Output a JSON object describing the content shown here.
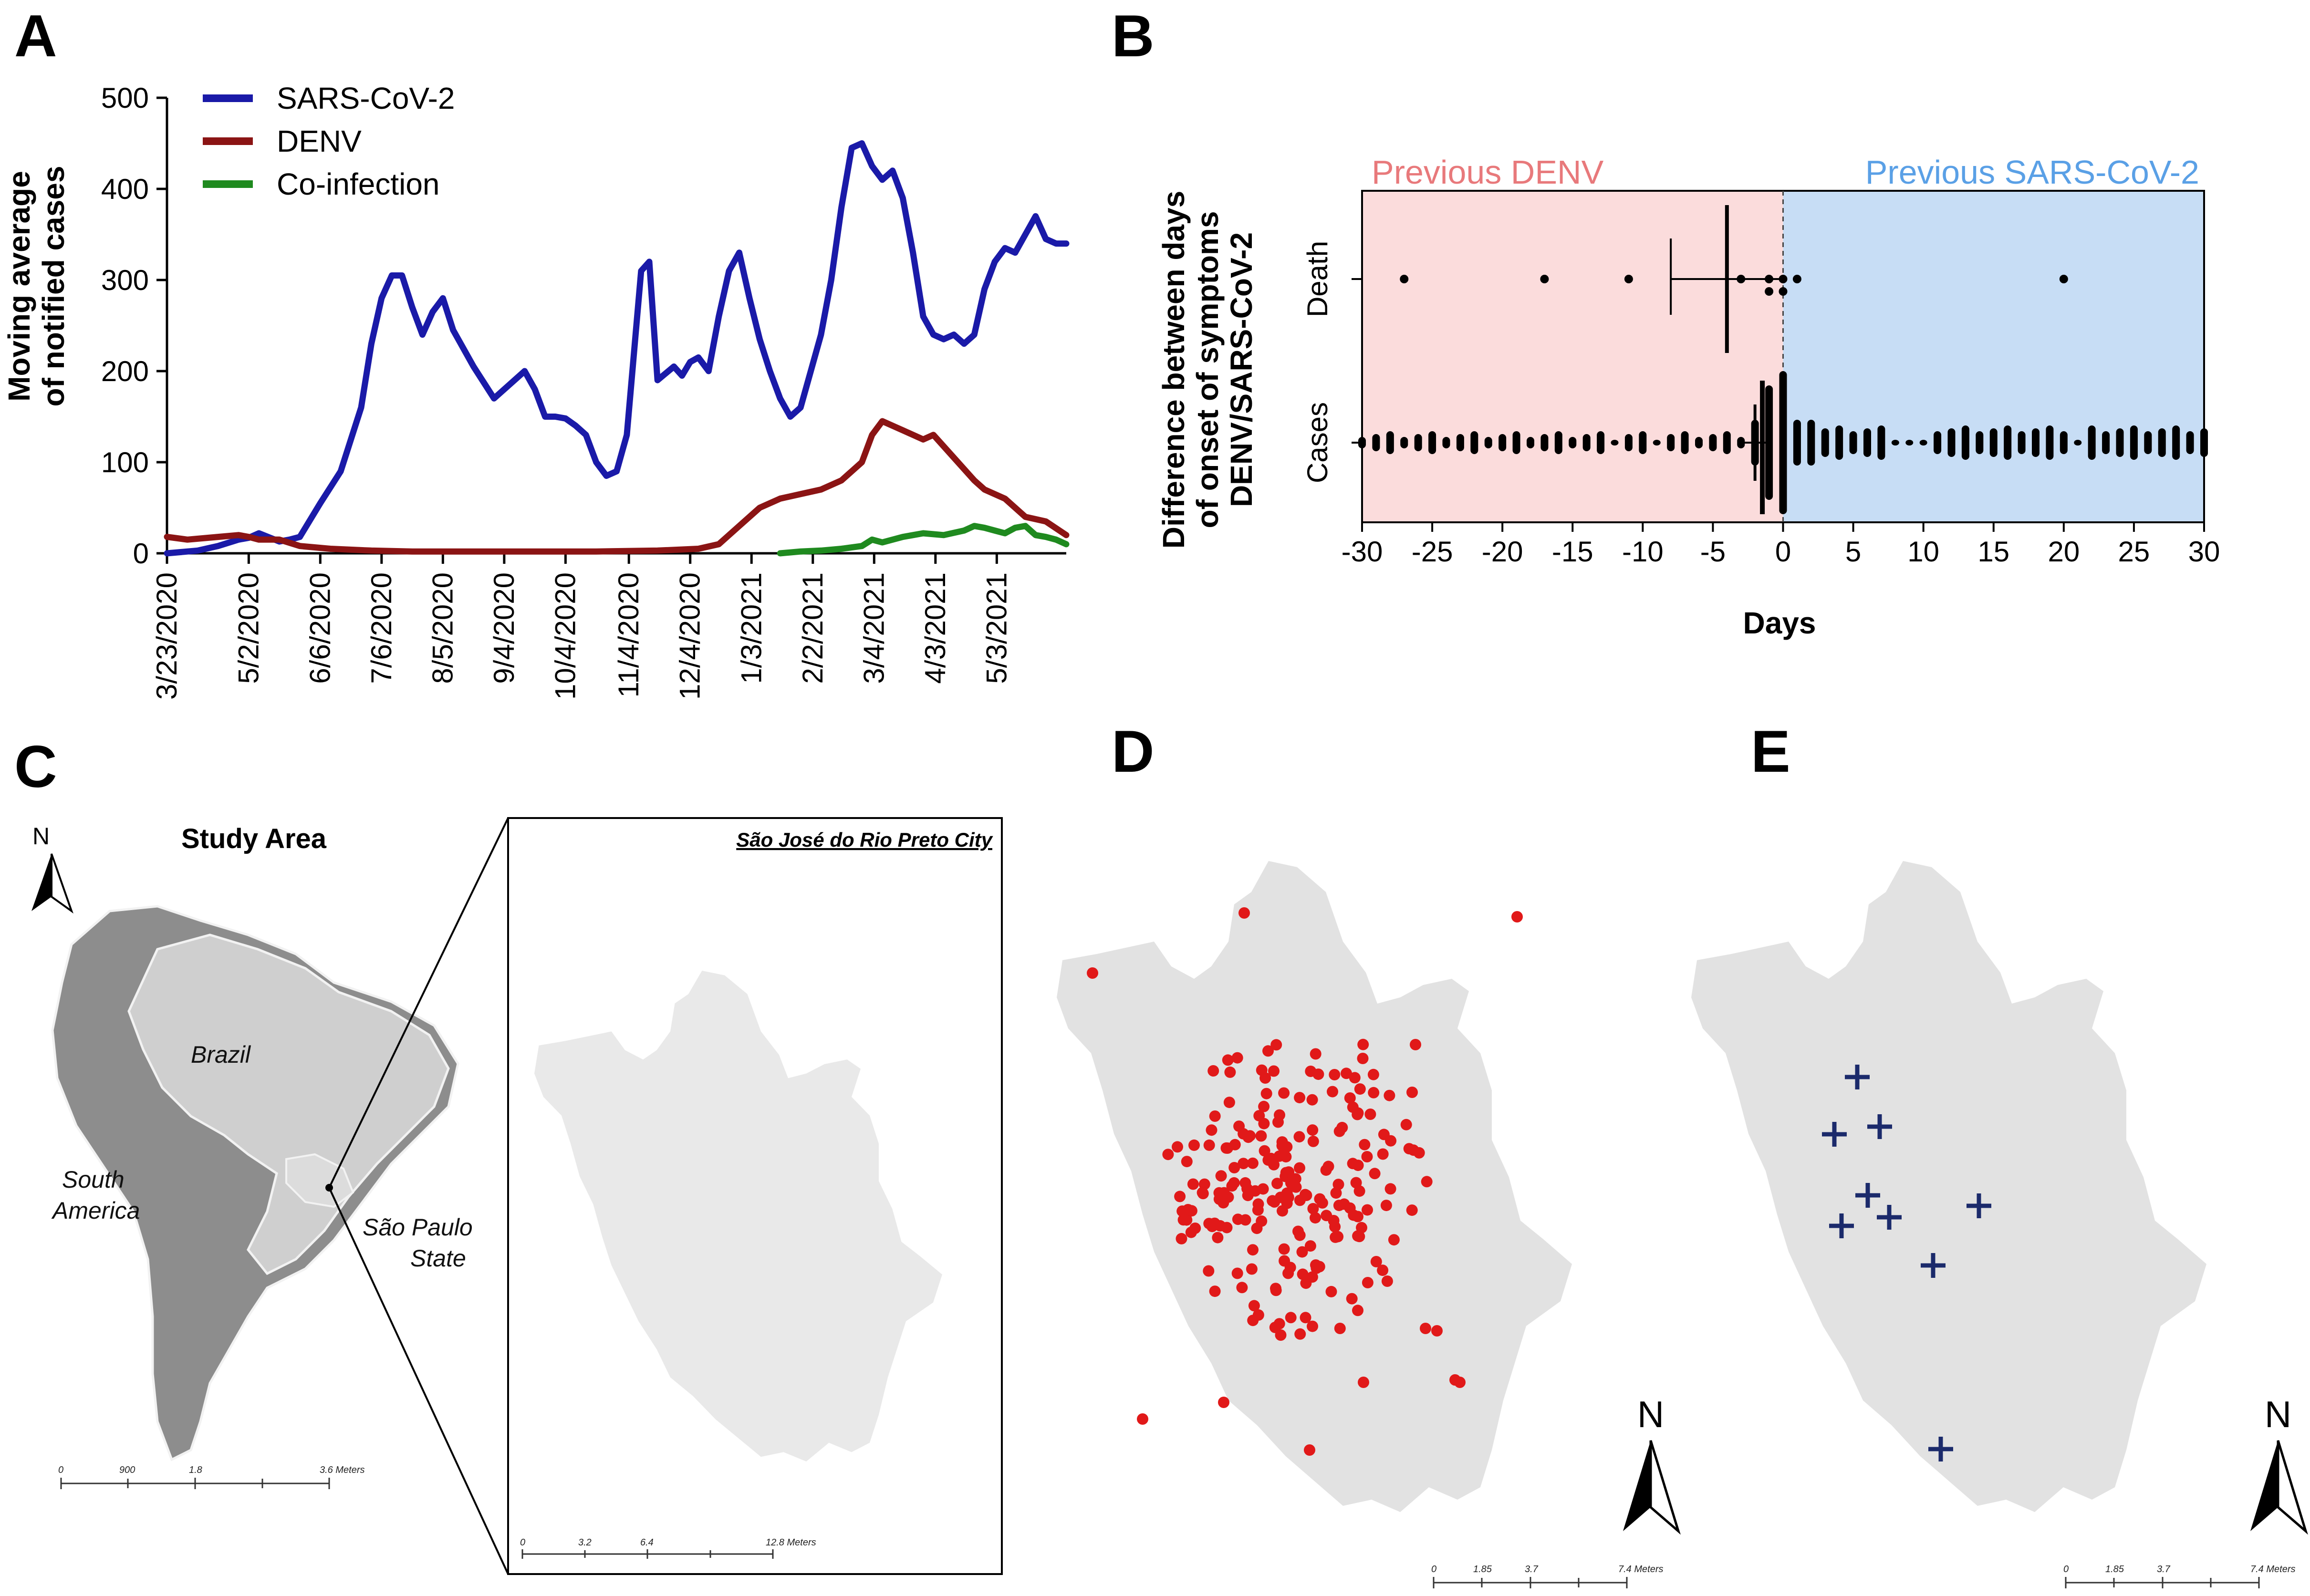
{
  "panels": {
    "a": "A",
    "b": "B",
    "c": "C",
    "d": "D",
    "e": "E"
  },
  "chart_data": [
    {
      "type": "line",
      "panel": "A",
      "ylabel_lines": [
        "Moving average",
        "of notified cases"
      ],
      "ylim": [
        0,
        500
      ],
      "yticks": [
        0,
        100,
        200,
        300,
        400,
        500
      ],
      "x_tick_labels": [
        "3/23/2020",
        "5/2/2020",
        "6/6/2020",
        "7/6/2020",
        "8/5/2020",
        "9/4/2020",
        "10/4/2020",
        "11/4/2020",
        "12/4/2020",
        "1/3/2021",
        "2/2/2021",
        "3/4/2021",
        "4/3/2021",
        "5/3/2021"
      ],
      "x_tick_day_index": [
        0,
        40,
        75,
        105,
        135,
        165,
        195,
        226,
        256,
        286,
        316,
        346,
        376,
        406
      ],
      "x_range_days": [
        0,
        440
      ],
      "legend": [
        "SARS-CoV-2",
        "DENV",
        "Co-infection"
      ],
      "colors": {
        "sars": "#1a1aa8",
        "denv": "#8b1414",
        "coinf": "#1f8a1f"
      },
      "series": [
        {
          "name": "SARS-CoV-2",
          "x": [
            0,
            15,
            25,
            35,
            40,
            45,
            55,
            60,
            65,
            75,
            85,
            95,
            100,
            105,
            110,
            115,
            120,
            125,
            130,
            135,
            140,
            150,
            160,
            170,
            175,
            180,
            185,
            190,
            195,
            200,
            205,
            210,
            215,
            220,
            225,
            232,
            236,
            240,
            248,
            252,
            256,
            260,
            265,
            270,
            275,
            280,
            285,
            290,
            295,
            300,
            305,
            310,
            315,
            320,
            325,
            330,
            335,
            340,
            345,
            350,
            355,
            360,
            365,
            370,
            375,
            380,
            385,
            390,
            395,
            400,
            405,
            410,
            415,
            420,
            425,
            430,
            435,
            440
          ],
          "values": [
            0,
            3,
            8,
            15,
            17,
            22,
            13,
            15,
            18,
            55,
            90,
            160,
            230,
            280,
            305,
            305,
            270,
            240,
            265,
            280,
            245,
            205,
            170,
            190,
            200,
            180,
            150,
            150,
            148,
            140,
            130,
            100,
            85,
            90,
            130,
            310,
            320,
            190,
            205,
            195,
            210,
            215,
            200,
            260,
            310,
            330,
            280,
            235,
            200,
            170,
            150,
            160,
            200,
            240,
            300,
            380,
            445,
            450,
            425,
            410,
            420,
            390,
            330,
            260,
            240,
            235,
            240,
            230,
            240,
            290,
            320,
            335,
            330,
            350,
            370,
            345,
            340,
            340
          ]
        },
        {
          "name": "DENV",
          "x": [
            0,
            10,
            25,
            35,
            40,
            45,
            55,
            65,
            80,
            100,
            120,
            150,
            180,
            210,
            240,
            260,
            270,
            280,
            290,
            300,
            310,
            320,
            330,
            340,
            345,
            350,
            360,
            370,
            375,
            385,
            395,
            400,
            410,
            420,
            430,
            440
          ],
          "values": [
            18,
            15,
            18,
            20,
            18,
            15,
            15,
            8,
            5,
            3,
            2,
            2,
            2,
            2,
            3,
            5,
            10,
            30,
            50,
            60,
            65,
            70,
            80,
            100,
            130,
            145,
            135,
            125,
            130,
            105,
            80,
            70,
            60,
            40,
            35,
            20
          ]
        },
        {
          "name": "Co-infection",
          "x": [
            300,
            310,
            320,
            330,
            340,
            345,
            350,
            360,
            370,
            380,
            390,
            395,
            400,
            405,
            410,
            415,
            420,
            425,
            430,
            435,
            440
          ],
          "values": [
            0,
            2,
            3,
            5,
            8,
            15,
            12,
            18,
            22,
            20,
            25,
            30,
            28,
            25,
            22,
            28,
            30,
            20,
            18,
            15,
            10
          ]
        }
      ]
    },
    {
      "type": "scatter",
      "panel": "B",
      "ylabel_lines": [
        "Difference between days",
        "of onset of symptoms",
        "DENV/SARS-CoV-2"
      ],
      "xlabel": "Days",
      "xlim": [
        -30,
        30
      ],
      "xticks": [
        -30,
        -25,
        -20,
        -15,
        -10,
        -5,
        0,
        5,
        10,
        15,
        20,
        25,
        30
      ],
      "categories": [
        "Death",
        "Cases"
      ],
      "region_labels": {
        "left": "Previous DENV",
        "right": "Previous SARS-CoV-2"
      },
      "colors": {
        "left": "#fbdcdc",
        "right": "#c7ddf5"
      },
      "death_points": [
        -27,
        -17,
        -11,
        -3,
        -1,
        0,
        1,
        -1,
        0,
        20
      ],
      "death_mean": -4,
      "death_ci": [
        -8,
        0
      ],
      "cases_range": [
        -30,
        30
      ],
      "cases_mean": -2,
      "cases_ci": [
        -3,
        -1
      ]
    }
  ],
  "panel_c": {
    "title": "Study Area",
    "city_title": "São José do Rio Preto City",
    "north": "N",
    "labels": {
      "brazil": "Brazil",
      "south_america_1": "South",
      "south_america_2": "America",
      "sp_1": "São Paulo",
      "sp_2": "State"
    },
    "scale_left": [
      "0",
      "900",
      "1.8",
      "3.6 Meters"
    ],
    "scale_inset": [
      "0",
      "3.2",
      "6.4",
      "12.8 Meters"
    ]
  },
  "panel_d": {
    "north": "N",
    "scale": [
      "0",
      "1.85",
      "3.7",
      "7.4 Meters"
    ],
    "marker_color": "#e11919"
  },
  "panel_e": {
    "north": "N",
    "scale": [
      "0",
      "1.85",
      "3.7",
      "7.4 Meters"
    ],
    "marker_color": "#1b2a6b"
  }
}
